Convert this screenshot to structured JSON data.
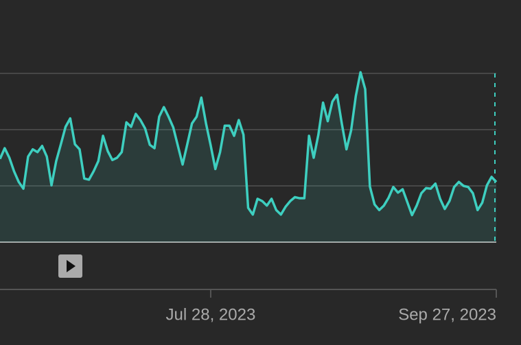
{
  "chart_data": {
    "type": "line",
    "color": "#3ecfc0",
    "grid": true,
    "ylim": [
      0,
      3
    ],
    "yticks": [
      0,
      1,
      2,
      3
    ],
    "xlim": [
      "2023-06-13",
      "2023-09-27"
    ],
    "xticks": [
      {
        "value": "2023-07-28",
        "label": "Jul 28, 2023"
      },
      {
        "value": "2023-09-27",
        "label": "Sep 27, 2023"
      }
    ],
    "x": [
      "2023-06-13",
      "2023-06-14",
      "2023-06-15",
      "2023-06-16",
      "2023-06-17",
      "2023-06-18",
      "2023-06-19",
      "2023-06-20",
      "2023-06-21",
      "2023-06-22",
      "2023-06-23",
      "2023-06-24",
      "2023-06-25",
      "2023-06-26",
      "2023-06-27",
      "2023-06-28",
      "2023-06-29",
      "2023-06-30",
      "2023-07-01",
      "2023-07-02",
      "2023-07-03",
      "2023-07-04",
      "2023-07-05",
      "2023-07-06",
      "2023-07-07",
      "2023-07-08",
      "2023-07-09",
      "2023-07-10",
      "2023-07-11",
      "2023-07-12",
      "2023-07-13",
      "2023-07-14",
      "2023-07-15",
      "2023-07-16",
      "2023-07-17",
      "2023-07-18",
      "2023-07-19",
      "2023-07-20",
      "2023-07-21",
      "2023-07-22",
      "2023-07-23",
      "2023-07-24",
      "2023-07-25",
      "2023-07-26",
      "2023-07-27",
      "2023-07-28",
      "2023-07-29",
      "2023-07-30",
      "2023-07-31",
      "2023-08-01",
      "2023-08-02",
      "2023-08-03",
      "2023-08-04",
      "2023-08-05",
      "2023-08-06",
      "2023-08-07",
      "2023-08-08",
      "2023-08-09",
      "2023-08-10",
      "2023-08-11",
      "2023-08-12",
      "2023-08-13",
      "2023-08-14",
      "2023-08-15",
      "2023-08-16",
      "2023-08-17",
      "2023-08-18",
      "2023-08-19",
      "2023-08-20",
      "2023-08-21",
      "2023-08-22",
      "2023-08-23",
      "2023-08-24",
      "2023-08-25",
      "2023-08-26",
      "2023-08-27",
      "2023-08-28",
      "2023-08-29",
      "2023-08-30",
      "2023-08-31",
      "2023-09-01",
      "2023-09-02",
      "2023-09-03",
      "2023-09-04",
      "2023-09-05",
      "2023-09-06",
      "2023-09-07",
      "2023-09-08",
      "2023-09-09",
      "2023-09-10",
      "2023-09-11",
      "2023-09-12",
      "2023-09-13",
      "2023-09-14",
      "2023-09-15",
      "2023-09-16",
      "2023-09-17",
      "2023-09-18",
      "2023-09-19",
      "2023-09-20",
      "2023-09-21",
      "2023-09-22",
      "2023-09-23",
      "2023-09-24",
      "2023-09-25",
      "2023-09-26",
      "2023-09-27"
    ],
    "values": [
      1.48,
      1.67,
      1.5,
      1.26,
      1.07,
      0.95,
      1.52,
      1.65,
      1.6,
      1.71,
      1.52,
      1.01,
      1.44,
      1.74,
      2.05,
      2.2,
      1.74,
      1.65,
      1.13,
      1.11,
      1.26,
      1.44,
      1.89,
      1.62,
      1.46,
      1.5,
      1.6,
      2.13,
      2.05,
      2.28,
      2.17,
      2.02,
      1.73,
      1.67,
      2.23,
      2.4,
      2.23,
      2.04,
      1.71,
      1.38,
      1.74,
      2.11,
      2.23,
      2.57,
      2.11,
      1.72,
      1.3,
      1.6,
      2.07,
      2.07,
      1.89,
      2.17,
      1.91,
      0.61,
      0.49,
      0.77,
      0.73,
      0.65,
      0.77,
      0.57,
      0.49,
      0.63,
      0.73,
      0.8,
      0.78,
      0.78,
      1.89,
      1.5,
      1.91,
      2.48,
      2.15,
      2.5,
      2.62,
      2.11,
      1.65,
      1.99,
      2.6,
      3.02,
      2.72,
      0.99,
      0.67,
      0.57,
      0.65,
      0.79,
      0.98,
      0.88,
      0.94,
      0.71,
      0.48,
      0.65,
      0.87,
      0.96,
      0.95,
      1.04,
      0.77,
      0.59,
      0.73,
      0.98,
      1.07,
      1.0,
      0.98,
      0.87,
      0.57,
      0.7,
      1.01,
      1.16,
      1.07
    ]
  }
}
